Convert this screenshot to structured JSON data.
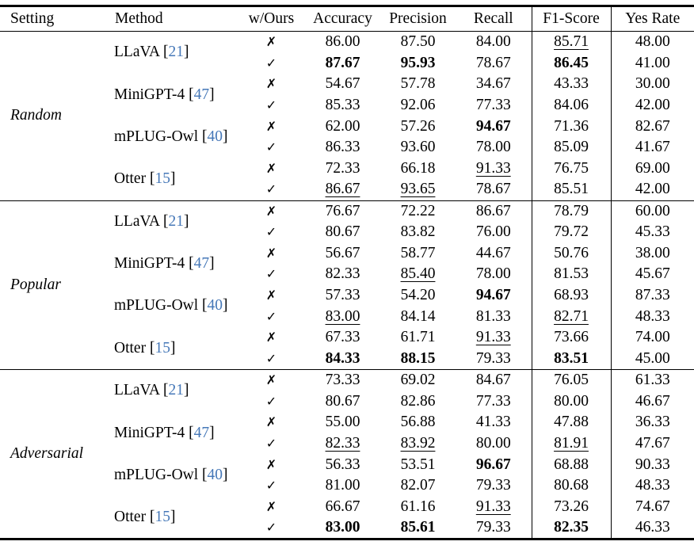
{
  "table": {
    "columns": [
      "Setting",
      "Method",
      "w/Ours",
      "Accuracy",
      "Precision",
      "Recall",
      "F1-Score",
      "Yes Rate"
    ],
    "marks": {
      "cross": "✗",
      "check": "✓"
    },
    "citation_brackets": {
      "open": "[",
      "close": "]"
    },
    "citation_color": "#4678b8",
    "sections": [
      {
        "setting": "Random",
        "methods": [
          {
            "name": "LLaVA",
            "citation": "21",
            "rows": [
              {
                "mark": "cross",
                "cells": [
                  [
                    "86.00",
                    ""
                  ],
                  [
                    "87.50",
                    ""
                  ],
                  [
                    "84.00",
                    ""
                  ],
                  [
                    "85.71",
                    "u"
                  ],
                  [
                    "48.00",
                    ""
                  ]
                ]
              },
              {
                "mark": "check",
                "cells": [
                  [
                    "87.67",
                    "b"
                  ],
                  [
                    "95.93",
                    "b"
                  ],
                  [
                    "78.67",
                    ""
                  ],
                  [
                    "86.45",
                    "b"
                  ],
                  [
                    "41.00",
                    ""
                  ]
                ]
              }
            ]
          },
          {
            "name": "MiniGPT-4",
            "citation": "47",
            "rows": [
              {
                "mark": "cross",
                "cells": [
                  [
                    "54.67",
                    ""
                  ],
                  [
                    "57.78",
                    ""
                  ],
                  [
                    "34.67",
                    ""
                  ],
                  [
                    "43.33",
                    ""
                  ],
                  [
                    "30.00",
                    ""
                  ]
                ]
              },
              {
                "mark": "check",
                "cells": [
                  [
                    "85.33",
                    ""
                  ],
                  [
                    "92.06",
                    ""
                  ],
                  [
                    "77.33",
                    ""
                  ],
                  [
                    "84.06",
                    ""
                  ],
                  [
                    "42.00",
                    ""
                  ]
                ]
              }
            ]
          },
          {
            "name": "mPLUG-Owl",
            "citation": "40",
            "rows": [
              {
                "mark": "cross",
                "cells": [
                  [
                    "62.00",
                    ""
                  ],
                  [
                    "57.26",
                    ""
                  ],
                  [
                    "94.67",
                    "b"
                  ],
                  [
                    "71.36",
                    ""
                  ],
                  [
                    "82.67",
                    ""
                  ]
                ]
              },
              {
                "mark": "check",
                "cells": [
                  [
                    "86.33",
                    ""
                  ],
                  [
                    "93.60",
                    ""
                  ],
                  [
                    "78.00",
                    ""
                  ],
                  [
                    "85.09",
                    ""
                  ],
                  [
                    "41.67",
                    ""
                  ]
                ]
              }
            ]
          },
          {
            "name": "Otter",
            "citation": "15",
            "rows": [
              {
                "mark": "cross",
                "cells": [
                  [
                    "72.33",
                    ""
                  ],
                  [
                    "66.18",
                    ""
                  ],
                  [
                    "91.33",
                    "u"
                  ],
                  [
                    "76.75",
                    ""
                  ],
                  [
                    "69.00",
                    ""
                  ]
                ]
              },
              {
                "mark": "check",
                "cells": [
                  [
                    "86.67",
                    "u"
                  ],
                  [
                    "93.65",
                    "u"
                  ],
                  [
                    "78.67",
                    ""
                  ],
                  [
                    "85.51",
                    ""
                  ],
                  [
                    "42.00",
                    ""
                  ]
                ]
              }
            ]
          }
        ]
      },
      {
        "setting": "Popular",
        "methods": [
          {
            "name": "LLaVA",
            "citation": "21",
            "rows": [
              {
                "mark": "cross",
                "cells": [
                  [
                    "76.67",
                    ""
                  ],
                  [
                    "72.22",
                    ""
                  ],
                  [
                    "86.67",
                    ""
                  ],
                  [
                    "78.79",
                    ""
                  ],
                  [
                    "60.00",
                    ""
                  ]
                ]
              },
              {
                "mark": "check",
                "cells": [
                  [
                    "80.67",
                    ""
                  ],
                  [
                    "83.82",
                    ""
                  ],
                  [
                    "76.00",
                    ""
                  ],
                  [
                    "79.72",
                    ""
                  ],
                  [
                    "45.33",
                    ""
                  ]
                ]
              }
            ]
          },
          {
            "name": "MiniGPT-4",
            "citation": "47",
            "rows": [
              {
                "mark": "cross",
                "cells": [
                  [
                    "56.67",
                    ""
                  ],
                  [
                    "58.77",
                    ""
                  ],
                  [
                    "44.67",
                    ""
                  ],
                  [
                    "50.76",
                    ""
                  ],
                  [
                    "38.00",
                    ""
                  ]
                ]
              },
              {
                "mark": "check",
                "cells": [
                  [
                    "82.33",
                    ""
                  ],
                  [
                    "85.40",
                    "u"
                  ],
                  [
                    "78.00",
                    ""
                  ],
                  [
                    "81.53",
                    ""
                  ],
                  [
                    "45.67",
                    ""
                  ]
                ]
              }
            ]
          },
          {
            "name": "mPLUG-Owl",
            "citation": "40",
            "rows": [
              {
                "mark": "cross",
                "cells": [
                  [
                    "57.33",
                    ""
                  ],
                  [
                    "54.20",
                    ""
                  ],
                  [
                    "94.67",
                    "b"
                  ],
                  [
                    "68.93",
                    ""
                  ],
                  [
                    "87.33",
                    ""
                  ]
                ]
              },
              {
                "mark": "check",
                "cells": [
                  [
                    "83.00",
                    "u"
                  ],
                  [
                    "84.14",
                    ""
                  ],
                  [
                    "81.33",
                    ""
                  ],
                  [
                    "82.71",
                    "u"
                  ],
                  [
                    "48.33",
                    ""
                  ]
                ]
              }
            ]
          },
          {
            "name": "Otter",
            "citation": "15",
            "rows": [
              {
                "mark": "cross",
                "cells": [
                  [
                    "67.33",
                    ""
                  ],
                  [
                    "61.71",
                    ""
                  ],
                  [
                    "91.33",
                    "u"
                  ],
                  [
                    "73.66",
                    ""
                  ],
                  [
                    "74.00",
                    ""
                  ]
                ]
              },
              {
                "mark": "check",
                "cells": [
                  [
                    "84.33",
                    "b"
                  ],
                  [
                    "88.15",
                    "b"
                  ],
                  [
                    "79.33",
                    ""
                  ],
                  [
                    "83.51",
                    "b"
                  ],
                  [
                    "45.00",
                    ""
                  ]
                ]
              }
            ]
          }
        ]
      },
      {
        "setting": "Adversarial",
        "methods": [
          {
            "name": "LLaVA",
            "citation": "21",
            "rows": [
              {
                "mark": "cross",
                "cells": [
                  [
                    "73.33",
                    ""
                  ],
                  [
                    "69.02",
                    ""
                  ],
                  [
                    "84.67",
                    ""
                  ],
                  [
                    "76.05",
                    ""
                  ],
                  [
                    "61.33",
                    ""
                  ]
                ]
              },
              {
                "mark": "check",
                "cells": [
                  [
                    "80.67",
                    ""
                  ],
                  [
                    "82.86",
                    ""
                  ],
                  [
                    "77.33",
                    ""
                  ],
                  [
                    "80.00",
                    ""
                  ],
                  [
                    "46.67",
                    ""
                  ]
                ]
              }
            ]
          },
          {
            "name": "MiniGPT-4",
            "citation": "47",
            "rows": [
              {
                "mark": "cross",
                "cells": [
                  [
                    "55.00",
                    ""
                  ],
                  [
                    "56.88",
                    ""
                  ],
                  [
                    "41.33",
                    ""
                  ],
                  [
                    "47.88",
                    ""
                  ],
                  [
                    "36.33",
                    ""
                  ]
                ]
              },
              {
                "mark": "check",
                "cells": [
                  [
                    "82.33",
                    "u"
                  ],
                  [
                    "83.92",
                    "u"
                  ],
                  [
                    "80.00",
                    ""
                  ],
                  [
                    "81.91",
                    "u"
                  ],
                  [
                    "47.67",
                    ""
                  ]
                ]
              }
            ]
          },
          {
            "name": "mPLUG-Owl",
            "citation": "40",
            "rows": [
              {
                "mark": "cross",
                "cells": [
                  [
                    "56.33",
                    ""
                  ],
                  [
                    "53.51",
                    ""
                  ],
                  [
                    "96.67",
                    "b"
                  ],
                  [
                    "68.88",
                    ""
                  ],
                  [
                    "90.33",
                    ""
                  ]
                ]
              },
              {
                "mark": "check",
                "cells": [
                  [
                    "81.00",
                    ""
                  ],
                  [
                    "82.07",
                    ""
                  ],
                  [
                    "79.33",
                    ""
                  ],
                  [
                    "80.68",
                    ""
                  ],
                  [
                    "48.33",
                    ""
                  ]
                ]
              }
            ]
          },
          {
            "name": "Otter",
            "citation": "15",
            "rows": [
              {
                "mark": "cross",
                "cells": [
                  [
                    "66.67",
                    ""
                  ],
                  [
                    "61.16",
                    ""
                  ],
                  [
                    "91.33",
                    "u"
                  ],
                  [
                    "73.26",
                    ""
                  ],
                  [
                    "74.67",
                    ""
                  ]
                ]
              },
              {
                "mark": "check",
                "cells": [
                  [
                    "83.00",
                    "b"
                  ],
                  [
                    "85.61",
                    "b"
                  ],
                  [
                    "79.33",
                    ""
                  ],
                  [
                    "82.35",
                    "b"
                  ],
                  [
                    "46.33",
                    ""
                  ]
                ]
              }
            ]
          }
        ]
      }
    ]
  }
}
